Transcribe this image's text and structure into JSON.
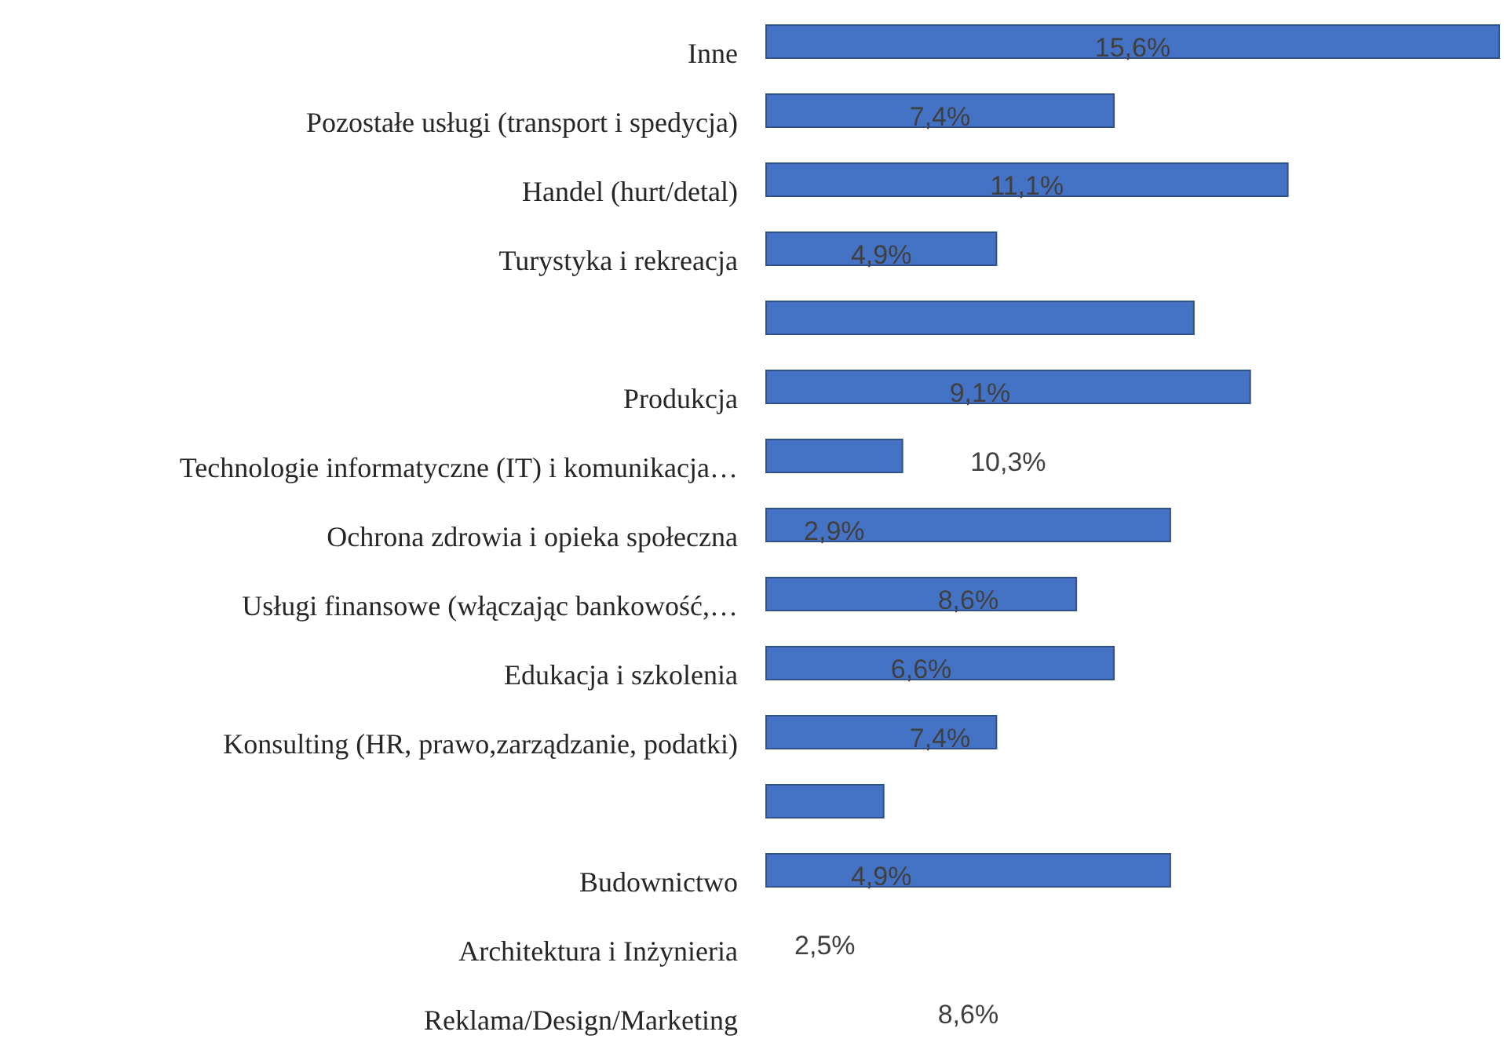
{
  "chart_data": {
    "type": "bar",
    "orientation": "horizontal",
    "color": "#4472c4",
    "categories": [
      "Inne",
      "Pozostałe usługi (transport i spedycja)",
      "Handel (hurt/detal)",
      "Turystyka i rekreacja",
      null,
      "Produkcja",
      "Technologie informatyczne (IT) i komunikacja…",
      "Ochrona zdrowia i opieka społeczna",
      "Usługi finansowe (włączając bankowość,…",
      "Edukacja i szkolenia",
      "Konsulting (HR, prawo,zarządzanie, podatki)",
      null,
      "Budownictwo",
      "Architektura i Inżynieria",
      "Reklama/Design/Marketing"
    ],
    "values": [
      15.6,
      7.4,
      11.1,
      4.9,
      9.1,
      10.3,
      2.9,
      8.6,
      6.6,
      7.4,
      4.9,
      2.5,
      8.6,
      null,
      null
    ],
    "value_labels": [
      "15,6%",
      "7,4%",
      "11,1%",
      "4,9%",
      null,
      null,
      null,
      null,
      null,
      null,
      null,
      null,
      null,
      null,
      null
    ],
    "annotations": [
      {
        "text": "9,1%",
        "y": "Produkcja"
      },
      "10,3%",
      {
        "text": "2,9%",
        "y": "Ochrona zdrowia i opieka społeczna"
      },
      {
        "text": "8,6%",
        "y": "Usługi finansowe (włączając bankowość,…"
      },
      {
        "text": "6,6%",
        "y": "Edukacja i szkolenia"
      },
      {
        "text": "7,4%",
        "y": "Konsulting (HR, prawo,zarządzanie, podatki)"
      },
      {
        "text": "4,9%",
        "y": "Budownictwo"
      },
      "2,5%",
      "8,6%"
    ]
  }
}
